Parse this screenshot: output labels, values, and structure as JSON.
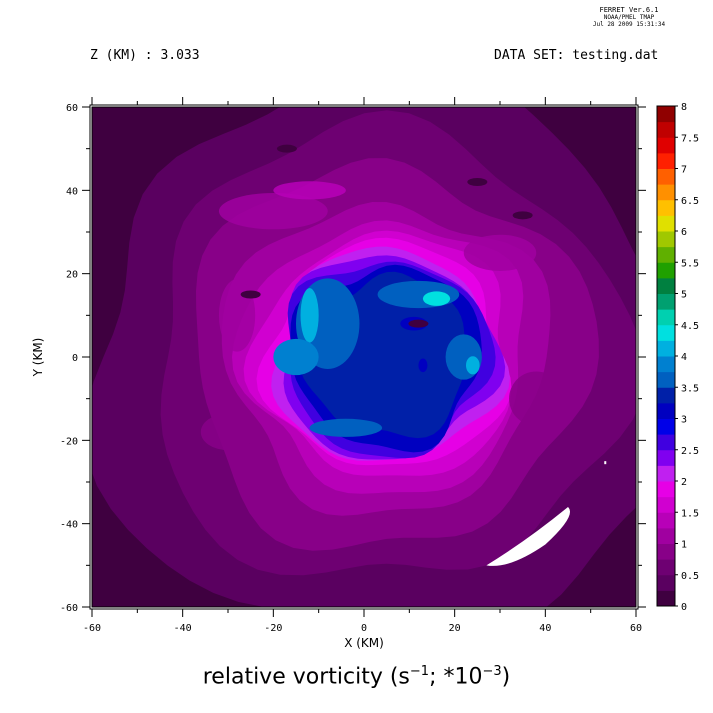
{
  "header": {
    "version": "FERRET Ver.6.1",
    "lab": "NOAA/PMEL TMAP",
    "date": "Jul 28 2009 15:31:34",
    "z_label": "Z (KM) : 3.033",
    "dataset_label": "DATA SET: testing.dat"
  },
  "caption": {
    "main": "relative vorticity (s",
    "exp1": "−1",
    "mid": "; *10",
    "exp2": "−3",
    "end": ")"
  },
  "chart_data": {
    "type": "heatmap",
    "title": "relative vorticity (s^-1; *10^-3)",
    "xlabel": "X (KM)",
    "ylabel": "Y (KM)",
    "xlim": [
      -60,
      60
    ],
    "ylim": [
      -60,
      60
    ],
    "x_ticks": [
      -60,
      -40,
      -20,
      0,
      20,
      40,
      60
    ],
    "y_ticks": [
      -60,
      -40,
      -20,
      0,
      20,
      40,
      60
    ],
    "colorbar": {
      "levels": [
        0,
        0.25,
        0.5,
        0.75,
        1,
        1.25,
        1.5,
        1.75,
        2,
        2.25,
        2.5,
        2.75,
        3,
        3.25,
        3.5,
        3.75,
        4,
        4.25,
        4.5,
        4.75,
        5,
        5.25,
        5.5,
        5.75,
        6,
        6.25,
        6.5,
        6.75,
        7,
        7.25,
        7.5,
        7.75,
        8
      ],
      "tick_labels": [
        "0",
        "0.5",
        "1",
        "1.5",
        "2",
        "2.5",
        "3",
        "3.5",
        "4",
        "4.5",
        "5",
        "5.5",
        "6",
        "6.5",
        "7",
        "7.5",
        "8"
      ],
      "colors": [
        "#3f0040",
        "#5a0060",
        "#6e0072",
        "#880088",
        "#a000a0",
        "#b800b8",
        "#d000d0",
        "#e600e6",
        "#c020f0",
        "#8000f0",
        "#4000e0",
        "#0000e8",
        "#0000c0",
        "#0020a8",
        "#0060c0",
        "#0080d0",
        "#00b0e0",
        "#00e0e0",
        "#00d0b0",
        "#00a070",
        "#008040",
        "#20a000",
        "#60b000",
        "#a0c800",
        "#e0e000",
        "#ffc000",
        "#ff9000",
        "#ff6000",
        "#ff2000",
        "#e00000",
        "#c00000",
        "#900000"
      ]
    },
    "features": {
      "vortex_center_km": [
        5,
        0
      ],
      "vortex_core_value": 3.25,
      "vortex_ring_value": 2.25,
      "background_value": 0.25,
      "missing_region": "white patch near (42, -45)"
    }
  }
}
